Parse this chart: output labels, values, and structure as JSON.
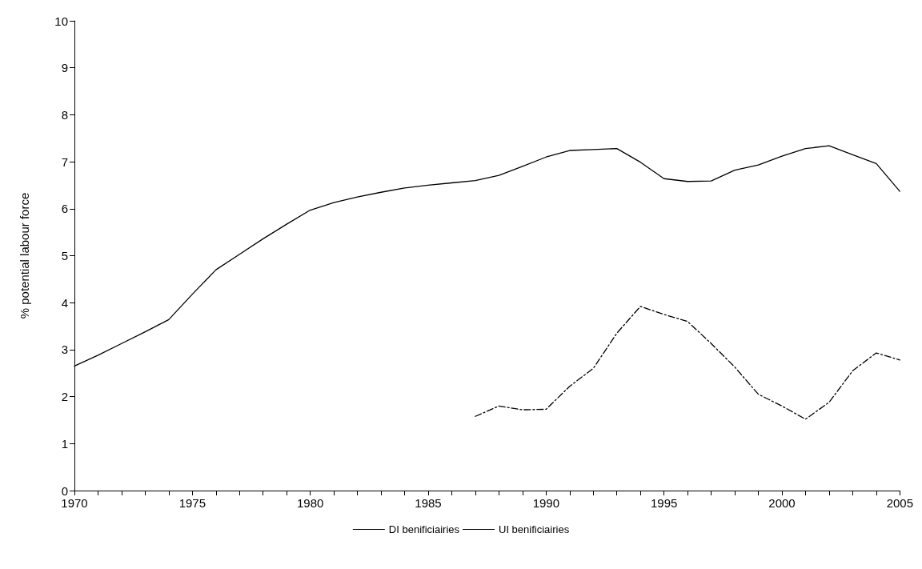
{
  "chart_data": {
    "type": "line",
    "ylabel": "% potential labour force",
    "xlim": [
      1970,
      2005
    ],
    "ylim": [
      0,
      10
    ],
    "xticks": [
      1970,
      {
        "value": 1971,
        "label": null
      },
      {
        "value": 1972,
        "label": null
      },
      {
        "value": 1973,
        "label": null
      },
      {
        "value": 1974,
        "label": null
      },
      1975,
      {
        "value": 1976,
        "label": null
      },
      {
        "value": 1977,
        "label": null
      },
      {
        "value": 1978,
        "label": null
      },
      {
        "value": 1979,
        "label": null
      },
      1980,
      {
        "value": 1981,
        "label": null
      },
      {
        "value": 1982,
        "label": null
      },
      {
        "value": 1983,
        "label": null
      },
      {
        "value": 1984,
        "label": null
      },
      1985,
      {
        "value": 1986,
        "label": null
      },
      {
        "value": 1987,
        "label": null
      },
      {
        "value": 1988,
        "label": null
      },
      {
        "value": 1989,
        "label": null
      },
      1990,
      {
        "value": 1991,
        "label": null
      },
      {
        "value": 1992,
        "label": null
      },
      {
        "value": 1993,
        "label": null
      },
      {
        "value": 1994,
        "label": null
      },
      1995,
      {
        "value": 1996,
        "label": null
      },
      {
        "value": 1997,
        "label": null
      },
      {
        "value": 1998,
        "label": null
      },
      {
        "value": 1999,
        "label": null
      },
      2000,
      {
        "value": 2001,
        "label": null
      },
      {
        "value": 2002,
        "label": null
      },
      {
        "value": 2003,
        "label": null
      },
      {
        "value": 2004,
        "label": null
      },
      2005
    ],
    "yticks": [
      0,
      1,
      2,
      3,
      4,
      5,
      6,
      7,
      8,
      9,
      10
    ],
    "grid": false,
    "legend": "bottom",
    "marker": "none",
    "series": [
      {
        "name": "DI benificiairies",
        "color": "#000000",
        "line_style": "solid",
        "x": [
          1970,
          1971,
          1972,
          1973,
          1974,
          1975,
          1976,
          1977,
          1978,
          1979,
          1980,
          1981,
          1982,
          1983,
          1984,
          1985,
          1986,
          1987,
          1988,
          1989,
          1990,
          1991,
          1992,
          1993,
          1994,
          1995,
          1996,
          1997,
          1998,
          1999,
          2000,
          2001,
          2002,
          2003,
          2004,
          2005
        ],
        "values": [
          2.65,
          2.88,
          3.13,
          3.38,
          3.64,
          4.18,
          4.7,
          5.03,
          5.36,
          5.67,
          5.97,
          6.13,
          6.25,
          6.35,
          6.44,
          6.5,
          6.55,
          6.6,
          6.71,
          6.9,
          7.1,
          7.24,
          7.26,
          7.28,
          6.99,
          6.64,
          6.58,
          6.59,
          6.82,
          6.93,
          7.12,
          7.28,
          7.34,
          7.15,
          6.96,
          6.37
        ]
      },
      {
        "name": "UI benificiairies",
        "color": "#000000",
        "line_style": "dashed",
        "x": [
          1987,
          1988,
          1989,
          1990,
          1991,
          1992,
          1993,
          1994,
          1995,
          1996,
          1997,
          1998,
          1999,
          2000,
          2001,
          2002,
          2003,
          2004,
          2005
        ],
        "values": [
          1.58,
          1.8,
          1.72,
          1.73,
          2.22,
          2.6,
          3.35,
          3.92,
          3.75,
          3.6,
          3.13,
          2.63,
          2.05,
          1.8,
          1.52,
          1.88,
          2.55,
          2.93,
          2.78
        ]
      }
    ]
  }
}
